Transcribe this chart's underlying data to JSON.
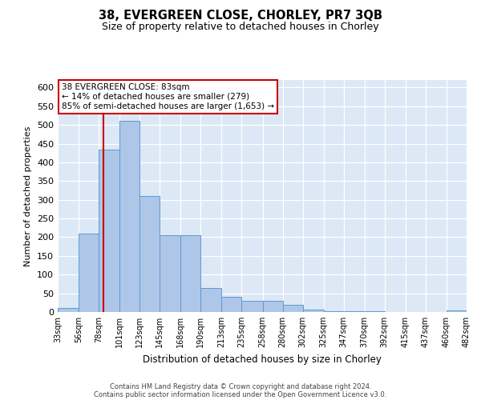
{
  "title": "38, EVERGREEN CLOSE, CHORLEY, PR7 3QB",
  "subtitle": "Size of property relative to detached houses in Chorley",
  "xlabel": "Distribution of detached houses by size in Chorley",
  "ylabel": "Number of detached properties",
  "footer_line1": "Contains HM Land Registry data © Crown copyright and database right 2024.",
  "footer_line2": "Contains public sector information licensed under the Open Government Licence v3.0.",
  "annotation_title": "38 EVERGREEN CLOSE: 83sqm",
  "annotation_line2": "← 14% of detached houses are smaller (279)",
  "annotation_line3": "85% of semi-detached houses are larger (1,653) →",
  "property_size": 83,
  "bar_color": "#aec6e8",
  "bar_edge_color": "#5b9bd5",
  "marker_color": "#cc0000",
  "background_color": "#dce8f5",
  "bin_edges": [
    33,
    56,
    78,
    101,
    123,
    145,
    168,
    190,
    213,
    235,
    258,
    280,
    302,
    325,
    347,
    370,
    392,
    415,
    437,
    460,
    482
  ],
  "bin_counts": [
    10,
    210,
    435,
    510,
    310,
    205,
    205,
    65,
    40,
    30,
    30,
    20,
    7,
    2,
    2,
    2,
    1,
    1,
    1,
    4
  ],
  "ylim": [
    0,
    620
  ],
  "yticks": [
    0,
    50,
    100,
    150,
    200,
    250,
    300,
    350,
    400,
    450,
    500,
    550,
    600
  ]
}
